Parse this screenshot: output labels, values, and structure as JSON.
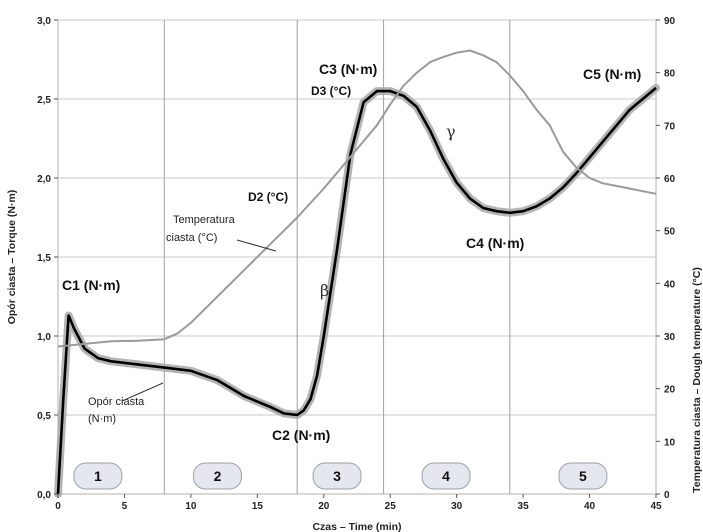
{
  "chart_data": {
    "type": "line",
    "xlabel": "Czas – Time (min)",
    "ylabel_left": "Opór ciasta – Torque (N·m)",
    "ylabel_right": "Temperatura ciasta – Dough temperature (°C)",
    "xlim": [
      0,
      45
    ],
    "ylim_left": [
      0,
      3.0
    ],
    "ylim_right": [
      0,
      90
    ],
    "x_ticks": [
      "0",
      "5",
      "10",
      "15",
      "20",
      "25",
      "30",
      "35",
      "40",
      "45"
    ],
    "y_left_ticks": [
      "0,0",
      "0,5",
      "1,0",
      "1,5",
      "2,0",
      "2,5",
      "3,0"
    ],
    "y_right_ticks": [
      "0",
      "10",
      "20",
      "30",
      "40",
      "50",
      "60",
      "70",
      "80",
      "90"
    ],
    "grid": true,
    "series": [
      {
        "name": "Opór ciasta (N·m)",
        "axis": "left",
        "color": "#000000",
        "x": [
          0,
          0.4,
          0.8,
          1.2,
          2,
          3,
          4,
          6,
          8,
          10,
          12,
          14,
          16,
          17,
          18,
          18.5,
          19,
          19.5,
          20,
          21,
          22,
          23,
          24,
          25,
          26,
          27,
          28,
          29,
          30,
          31,
          32,
          33,
          34,
          35,
          36,
          37,
          38,
          39,
          40,
          41,
          42,
          43,
          44,
          45
        ],
        "values": [
          0.0,
          0.6,
          1.13,
          1.05,
          0.92,
          0.86,
          0.84,
          0.82,
          0.8,
          0.78,
          0.72,
          0.62,
          0.55,
          0.51,
          0.5,
          0.53,
          0.6,
          0.75,
          1.0,
          1.55,
          2.15,
          2.48,
          2.55,
          2.55,
          2.52,
          2.45,
          2.3,
          2.12,
          1.97,
          1.87,
          1.81,
          1.79,
          1.78,
          1.79,
          1.82,
          1.87,
          1.94,
          2.03,
          2.13,
          2.23,
          2.33,
          2.43,
          2.5,
          2.57
        ]
      },
      {
        "name": "Temperatura ciasta (°C)",
        "axis": "right",
        "color": "#9a9a9a",
        "x": [
          0,
          2,
          4,
          6,
          8,
          9,
          10,
          12,
          14,
          16,
          18,
          20,
          22,
          24,
          25,
          26,
          27,
          28,
          29,
          30,
          31,
          32,
          33,
          34,
          35,
          36,
          37,
          38,
          39,
          40,
          41,
          42,
          43,
          44,
          45
        ],
        "values": [
          28.0,
          28.5,
          29.0,
          29.1,
          29.4,
          30.5,
          32.5,
          37.5,
          42.5,
          47.5,
          52.5,
          58.0,
          64.0,
          70.0,
          74.0,
          77.5,
          80.0,
          82.0,
          83.0,
          83.8,
          84.2,
          83.3,
          82.0,
          79.5,
          76.5,
          73.0,
          70.0,
          65.0,
          62.0,
          60.0,
          59.0,
          58.5,
          58.0,
          57.5,
          57.0
        ]
      }
    ],
    "annotations": {
      "c1": "C1 (N·m)",
      "c2": "C2 (N·m)",
      "c3": "C3 (N·m)",
      "c4": "C4 (N·m)",
      "c5": "C5 (N·m)",
      "d2": "D2 (°C)",
      "d3": "D3 (°C)",
      "beta": "β",
      "gamma": "γ",
      "temp_label_line1": "Temperatura",
      "temp_label_line2": "ciasta (°C)",
      "torque_label_line1": "Opór ciasta",
      "torque_label_line2": "(N·m)"
    },
    "phase_dividers_x": [
      8,
      18,
      24.5,
      34
    ],
    "phases": [
      {
        "label": "1",
        "x": 3
      },
      {
        "label": "2",
        "x": 12
      },
      {
        "label": "3",
        "x": 21
      },
      {
        "label": "4",
        "x": 29.2
      },
      {
        "label": "5",
        "x": 39.5
      }
    ]
  }
}
